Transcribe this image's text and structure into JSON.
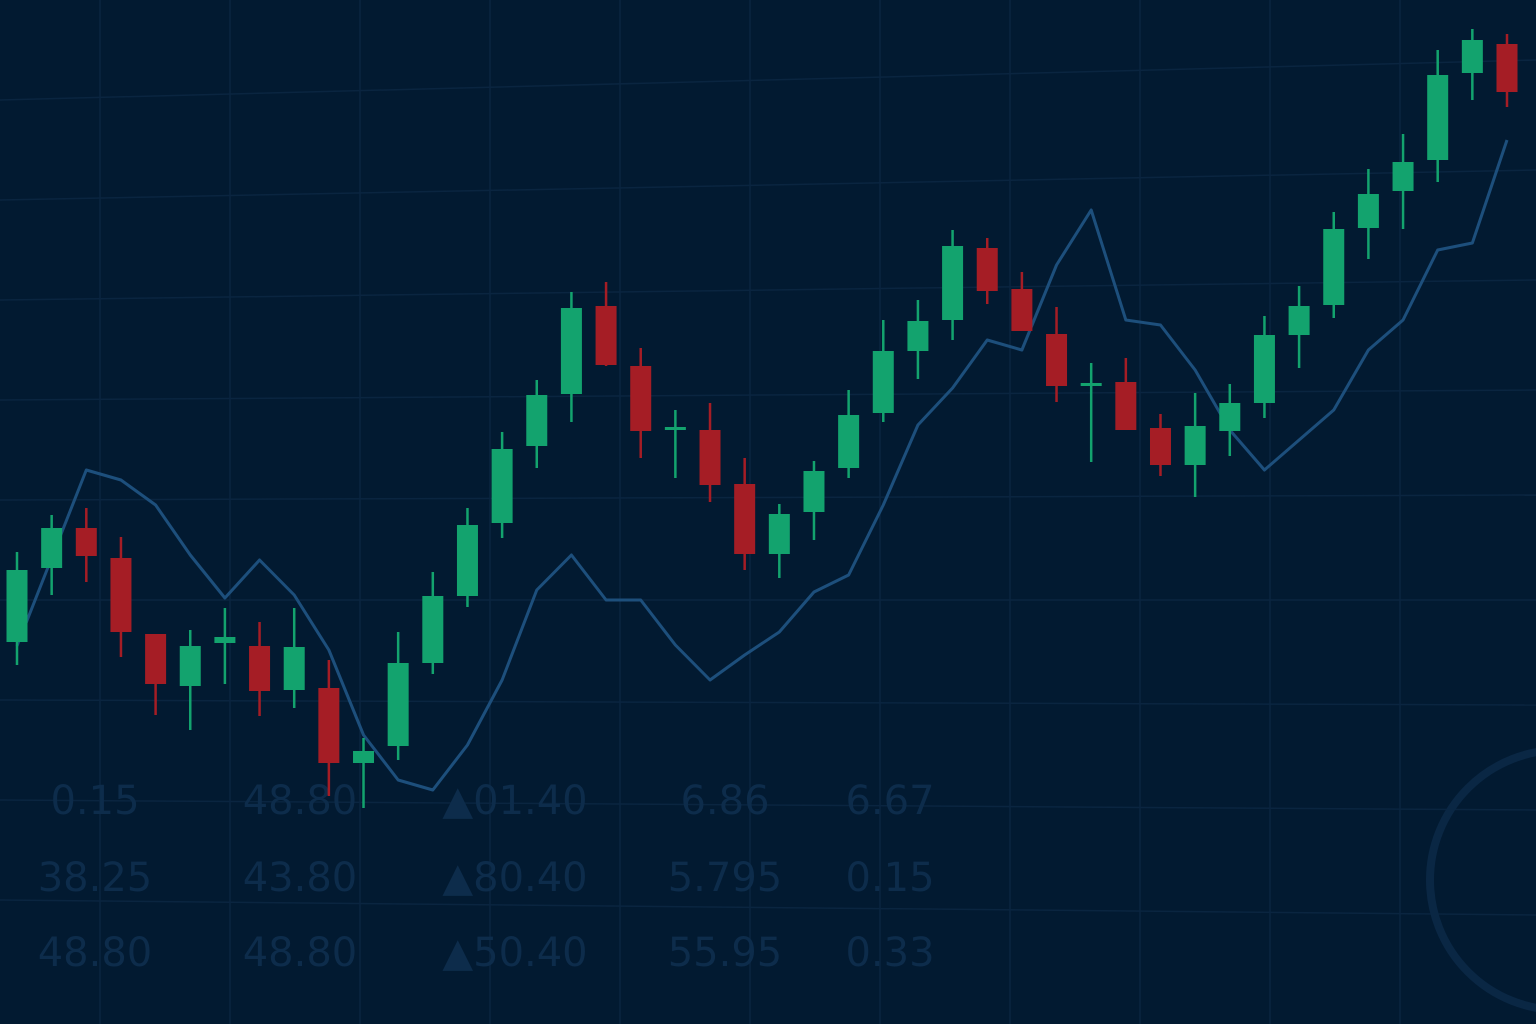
{
  "chart_data": {
    "type": "candlestick",
    "categories": [
      null,
      null,
      null,
      null,
      null,
      null,
      null,
      null,
      null,
      null,
      null,
      null,
      null,
      null,
      null,
      null,
      null,
      null,
      null,
      null,
      null,
      null,
      null,
      null,
      null,
      null,
      null,
      null,
      null,
      null,
      null,
      null,
      null,
      null,
      null,
      null,
      null,
      null,
      null,
      null,
      null,
      null,
      null,
      null
    ],
    "open": [
      382,
      456,
      496,
      466,
      390,
      338,
      381,
      378,
      334,
      336,
      261,
      278,
      361,
      428,
      501,
      578,
      630,
      718,
      658,
      594,
      594,
      540,
      470,
      512,
      556,
      611,
      673,
      704,
      776,
      735,
      690,
      638,
      642,
      596,
      559,
      593,
      621,
      689,
      719,
      796,
      833,
      864,
      951,
      980
    ],
    "high": [
      472,
      509,
      516,
      487,
      390,
      394,
      416,
      402,
      416,
      364,
      286,
      392,
      452,
      516,
      592,
      644,
      732,
      742,
      676,
      614,
      621,
      566,
      520,
      563,
      634,
      704,
      724,
      794,
      786,
      752,
      717,
      661,
      666,
      610,
      631,
      640,
      708,
      738,
      812,
      855,
      890,
      974,
      995,
      990
    ],
    "low": [
      359,
      429,
      442,
      367,
      309,
      294,
      340,
      308,
      316,
      228,
      216,
      264,
      350,
      417,
      486,
      556,
      602,
      658,
      566,
      546,
      522,
      454,
      446,
      484,
      546,
      602,
      645,
      684,
      720,
      693,
      622,
      562,
      596,
      548,
      527,
      568,
      606,
      656,
      706,
      765,
      795,
      842,
      924,
      917
    ],
    "close": [
      454,
      496,
      468,
      392,
      340,
      378,
      387,
      333,
      377,
      261,
      273,
      361,
      428,
      499,
      575,
      629,
      716,
      659,
      593,
      597,
      539,
      470,
      510,
      553,
      609,
      673,
      703,
      778,
      733,
      693,
      638,
      641,
      594,
      559,
      598,
      621,
      689,
      718,
      795,
      830,
      862,
      949,
      984,
      932
    ],
    "up_color": "#13a36e",
    "down_color": "#a51d25",
    "lines": [
      {
        "color": "#1d4f7c",
        "values": [
          378,
          466,
          554,
          544,
          519,
          469,
          426,
          464,
          429,
          374,
          289,
          244,
          234,
          279,
          344,
          434,
          469,
          424,
          424,
          379,
          344,
          369,
          392,
          432,
          449,
          519,
          599,
          636,
          684,
          674,
          759,
          814,
          704,
          699,
          654,
          594,
          554,
          584,
          614,
          674,
          704,
          774,
          781,
          884
        ]
      }
    ],
    "ylim": [
      0,
      1024
    ]
  },
  "ticker_table": {
    "rows": [
      [
        "0.15",
        "48.80",
        "▲01.40",
        "6.86",
        "6.67"
      ],
      [
        "38.25",
        "43.80",
        "▲80.40",
        "5.795",
        "0.15"
      ],
      [
        "48.80",
        "48.80",
        "▲50.40",
        "55.95",
        "0.33"
      ]
    ]
  }
}
